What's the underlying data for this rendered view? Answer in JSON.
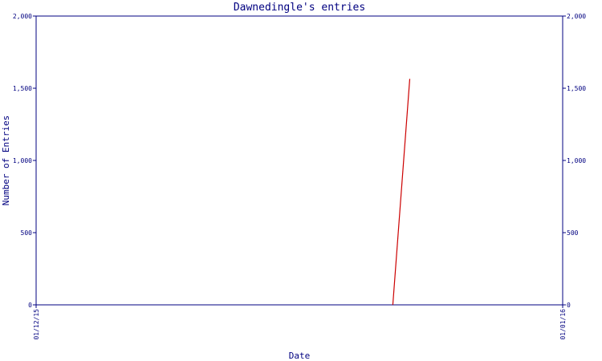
{
  "chart_data": {
    "type": "line",
    "title": "Dawnedingle's entries",
    "xlabel": "Date",
    "ylabel": "Number of Entries",
    "x_ticks": [
      "01/12/15",
      "01/01/16"
    ],
    "xlim": [
      "2015-12-01",
      "2016-01-01"
    ],
    "ylim": [
      0,
      2000
    ],
    "y_ticks": [
      0,
      500,
      1000,
      1500,
      2000
    ],
    "y_tick_labels": [
      "0",
      "500",
      "1,000",
      "1,500",
      "2,000"
    ],
    "grid": false,
    "legend": "none",
    "series": [
      {
        "color": "#cc0000",
        "x": [
          "2015-12-22",
          "2015-12-23"
        ],
        "values": [
          0,
          1565
        ]
      }
    ]
  }
}
